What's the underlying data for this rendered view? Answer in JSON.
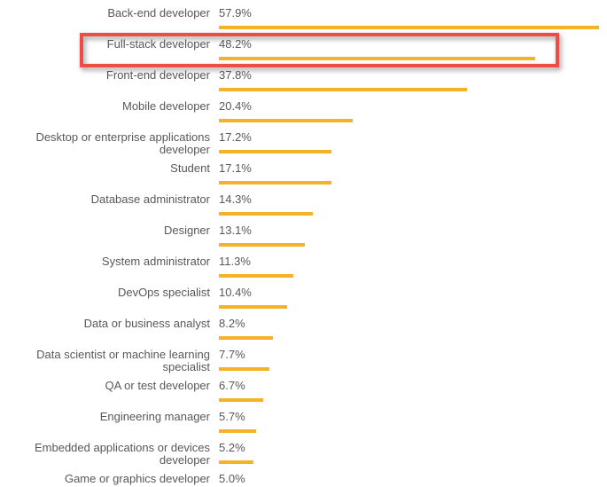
{
  "chart_data": {
    "type": "bar",
    "orientation": "horizontal",
    "title": "",
    "xlabel": "",
    "ylabel": "",
    "xlim": [
      0,
      60
    ],
    "grid": false,
    "legend": false,
    "bar_color": "#F5B227",
    "text_color": "#58585A",
    "categories": [
      "Back-end developer",
      "Full-stack developer",
      "Front-end developer",
      "Mobile developer",
      "Desktop or enterprise applications developer",
      "Student",
      "Database administrator",
      "Designer",
      "System administrator",
      "DevOps specialist",
      "Data or business analyst",
      "Data scientist or machine learning specialist",
      "QA or test developer",
      "Engineering manager",
      "Embedded applications or devices developer",
      "Game or graphics developer"
    ],
    "values": [
      57.9,
      48.2,
      37.8,
      20.4,
      17.2,
      17.1,
      14.3,
      13.1,
      11.3,
      10.4,
      8.2,
      7.7,
      6.7,
      5.7,
      5.2,
      5.0
    ],
    "value_labels": [
      "57.9%",
      "48.2%",
      "37.8%",
      "20.4%",
      "17.2%",
      "17.1%",
      "14.3%",
      "13.1%",
      "11.3%",
      "10.4%",
      "8.2%",
      "7.7%",
      "6.7%",
      "5.7%",
      "5.2%",
      "5.0%"
    ],
    "annotation": {
      "type": "highlight-box",
      "target_category": "Full-stack developer",
      "target_index": 1,
      "color": "#F04C46"
    }
  }
}
